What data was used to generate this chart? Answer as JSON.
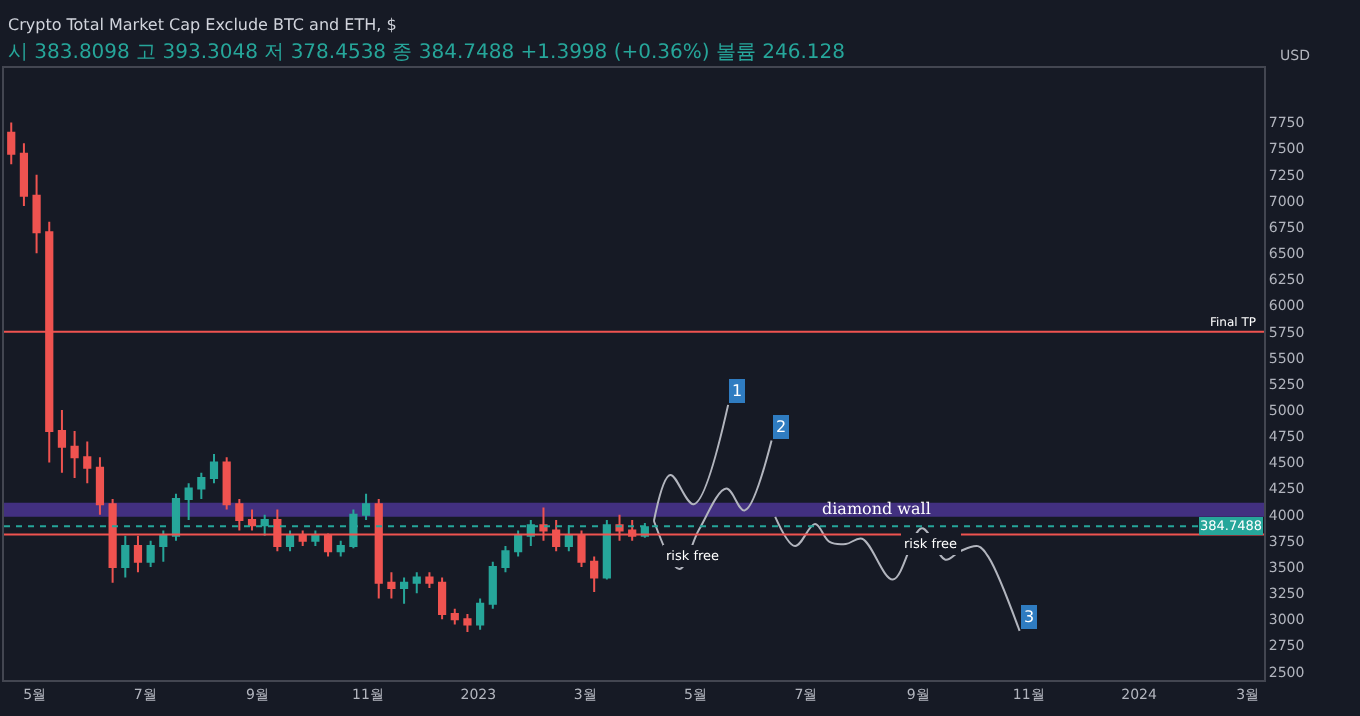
{
  "chart_data": {
    "type": "candlestick",
    "title": "Crypto Total Market Cap Exclude BTC and ETH, $",
    "subtitle": "시 383.8098 고 393.3048 저 378.4538 종 384.7488 +1.3998 (+0.36%) 볼륨 246.128",
    "ylabel": "USD",
    "x": [
      "2022-04-18",
      "2022-04-25",
      "2022-05-02",
      "2022-05-09",
      "2022-05-16",
      "2022-05-23",
      "2022-05-30",
      "2022-06-06",
      "2022-06-13",
      "2022-06-20",
      "2022-06-27",
      "2022-07-04",
      "2022-07-11",
      "2022-07-18",
      "2022-07-25",
      "2022-08-01",
      "2022-08-08",
      "2022-08-15",
      "2022-08-22",
      "2022-08-29",
      "2022-09-05",
      "2022-09-12",
      "2022-09-19",
      "2022-09-26",
      "2022-10-03",
      "2022-10-10",
      "2022-10-17",
      "2022-10-24",
      "2022-10-31",
      "2022-11-07",
      "2022-11-14",
      "2022-11-21",
      "2022-11-28",
      "2022-12-05",
      "2022-12-12",
      "2022-12-19",
      "2022-12-26",
      "2023-01-02",
      "2023-01-09",
      "2023-01-16",
      "2023-01-23",
      "2023-01-30",
      "2023-02-06",
      "2023-02-13",
      "2023-02-20",
      "2023-02-27",
      "2023-03-06",
      "2023-03-13",
      "2023-03-20",
      "2023-03-27",
      "2023-04-03"
    ],
    "ohlc": [
      [
        7650,
        7750,
        7350,
        7450
      ],
      [
        7450,
        7550,
        6950,
        7050
      ],
      [
        7050,
        7250,
        6500,
        6700
      ],
      [
        6700,
        6800,
        4500,
        4800
      ],
      [
        4800,
        5000,
        4400,
        4650
      ],
      [
        4650,
        4800,
        4350,
        4550
      ],
      [
        4550,
        4700,
        4300,
        4450
      ],
      [
        4450,
        4550,
        4000,
        4100
      ],
      [
        4100,
        4150,
        3350,
        3500
      ],
      [
        3500,
        3800,
        3400,
        3700
      ],
      [
        3700,
        3800,
        3450,
        3550
      ],
      [
        3550,
        3750,
        3500,
        3700
      ],
      [
        3700,
        3850,
        3550,
        3800
      ],
      [
        3800,
        4200,
        3750,
        4150
      ],
      [
        4150,
        4300,
        3950,
        4250
      ],
      [
        4250,
        4400,
        4150,
        4350
      ],
      [
        4350,
        4580,
        4300,
        4500
      ],
      [
        4500,
        4550,
        4050,
        4100
      ],
      [
        4100,
        4150,
        3850,
        3950
      ],
      [
        3950,
        4050,
        3850,
        3900
      ],
      [
        3900,
        4000,
        3800,
        3950
      ],
      [
        3950,
        4050,
        3650,
        3700
      ],
      [
        3700,
        3850,
        3650,
        3800
      ],
      [
        3800,
        3850,
        3700,
        3750
      ],
      [
        3750,
        3850,
        3700,
        3800
      ],
      [
        3800,
        3820,
        3600,
        3650
      ],
      [
        3650,
        3750,
        3600,
        3700
      ],
      [
        3700,
        4050,
        3680,
        4000
      ],
      [
        4000,
        4200,
        3950,
        4100
      ],
      [
        4100,
        4150,
        3200,
        3350
      ],
      [
        3350,
        3450,
        3200,
        3300
      ],
      [
        3300,
        3400,
        3150,
        3350
      ],
      [
        3350,
        3450,
        3250,
        3400
      ],
      [
        3400,
        3450,
        3300,
        3350
      ],
      [
        3350,
        3400,
        3000,
        3050
      ],
      [
        3050,
        3100,
        2950,
        3000
      ],
      [
        3000,
        3050,
        2880,
        2950
      ],
      [
        2950,
        3200,
        2900,
        3150
      ],
      [
        3150,
        3550,
        3100,
        3500
      ],
      [
        3500,
        3700,
        3450,
        3650
      ],
      [
        3650,
        3850,
        3600,
        3800
      ],
      [
        3800,
        3950,
        3700,
        3900
      ],
      [
        3900,
        4070,
        3750,
        3850
      ],
      [
        3850,
        3950,
        3650,
        3700
      ],
      [
        3700,
        3900,
        3650,
        3800
      ],
      [
        3800,
        3850,
        3500,
        3550
      ],
      [
        3550,
        3600,
        3260,
        3400
      ],
      [
        3400,
        3950,
        3380,
        3900
      ],
      [
        3900,
        4000,
        3750,
        3850
      ],
      [
        3850,
        3950,
        3750,
        3800
      ],
      [
        3800,
        3920,
        3780,
        3880
      ]
    ],
    "series": [
      {
        "type": "line",
        "color": "#b2b5be",
        "x": [
          "2023-04-08",
          "2023-04-17",
          "2023-04-30",
          "2023-05-19"
        ],
        "values": [
          3940,
          4380,
          4100,
          5050
        ]
      },
      {
        "type": "line",
        "color": "#b2b5be",
        "x": [
          "2023-04-08",
          "2023-04-22",
          "2023-05-03",
          "2023-05-18",
          "2023-05-28",
          "2023-06-12"
        ],
        "values": [
          3940,
          3480,
          3860,
          4250,
          4040,
          4710
        ]
      },
      {
        "type": "line",
        "color": "#b2b5be",
        "x": [
          "2023-06-14",
          "2023-06-25",
          "2023-07-06",
          "2023-07-14",
          "2023-07-23",
          "2023-08-01",
          "2023-08-18",
          "2023-09-03",
          "2023-09-16",
          "2023-09-24",
          "2023-10-04",
          "2023-10-10",
          "2023-10-27"
        ],
        "values": [
          3980,
          3700,
          3910,
          3740,
          3720,
          3770,
          3380,
          3870,
          3570,
          3650,
          3700,
          3590,
          2890
        ]
      }
    ],
    "xlim": [
      "2022-04-14",
      "2024-03-10"
    ],
    "xticks": [
      {
        "value": "2022-05-01",
        "label": "5월"
      },
      {
        "value": "2022-07-01",
        "label": "7월"
      },
      {
        "value": "2022-09-01",
        "label": "9월"
      },
      {
        "value": "2022-11-01",
        "label": "11월"
      },
      {
        "value": "2023-01-01",
        "label": "2023"
      },
      {
        "value": "2023-03-01",
        "label": "3월"
      },
      {
        "value": "2023-05-01",
        "label": "5월"
      },
      {
        "value": "2023-07-01",
        "label": "7월"
      },
      {
        "value": "2023-09-01",
        "label": "9월"
      },
      {
        "value": "2023-11-01",
        "label": "11월"
      },
      {
        "value": "2024-01-01",
        "label": "2024"
      },
      {
        "value": "2024-03-01",
        "label": "3월"
      }
    ],
    "ylim": [
      2420,
      8270
    ],
    "yticks": [
      2500,
      2750,
      3000,
      3250,
      3500,
      3750,
      4000,
      4250,
      4500,
      4750,
      5000,
      5250,
      5500,
      5750,
      6000,
      6250,
      6500,
      6750,
      7000,
      7250,
      7500,
      7750
    ],
    "ref_lines": [
      {
        "axis": "y",
        "value": 5750,
        "label": "Final TP",
        "color": "#ef5350",
        "line_style": "solid"
      },
      {
        "axis": "y",
        "value": 3810,
        "color": "#ef5350",
        "line_style": "solid"
      },
      {
        "axis": "y",
        "value": 3890,
        "color": "#26a69a",
        "line_style": "dotted"
      }
    ],
    "bands": [
      {
        "axis": "y",
        "from": 3980,
        "to": 4115,
        "label": "diamond wall",
        "color": "#4a3590"
      }
    ],
    "annotations": [
      {
        "text": "1",
        "x": "2023-05-19",
        "y": 5050
      },
      {
        "text": "2",
        "x": "2023-06-12",
        "y": 4710
      },
      {
        "text": "3",
        "x": "2023-10-27",
        "y": 2890
      },
      {
        "text": "risk free",
        "x": "2023-04-30",
        "y": 3720
      },
      {
        "text": "risk free",
        "x": "2023-09-08",
        "y": 3830
      },
      {
        "text": "384.7488",
        "x": "2024-03-10",
        "y": 3890
      }
    ],
    "grid": false
  }
}
